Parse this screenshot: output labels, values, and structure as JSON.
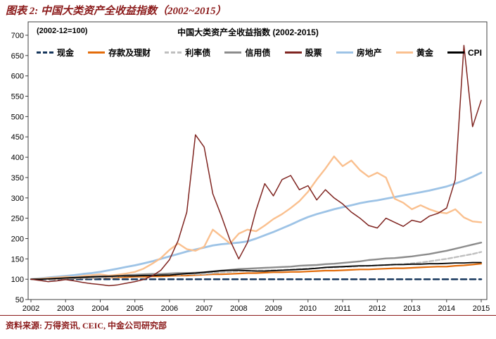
{
  "header": {
    "title": "图表 2:  中国大类资产全收益指数（2002~2015）"
  },
  "footer": {
    "source": "资料来源: 万得资讯, CEIC, 中金公司研究部"
  },
  "chart_data": {
    "type": "line",
    "title": "中国大类资产全收益指数 (2002-2015)",
    "note": "(2002-12=100)",
    "grid": false,
    "legend_position": "top-inside",
    "xlim": [
      2002,
      2015
    ],
    "ylim": [
      50,
      700
    ],
    "x_step": 0.25,
    "x_tick_labels": [
      "2002",
      "2003",
      "2004",
      "2005",
      "2006",
      "2007",
      "2008",
      "2009",
      "2010",
      "2011",
      "2012",
      "2013",
      "2014",
      "2015"
    ],
    "y_ticks": [
      50,
      100,
      150,
      200,
      250,
      300,
      350,
      400,
      450,
      500,
      550,
      600,
      650,
      700
    ],
    "series": [
      {
        "key": "cash",
        "name": "现金",
        "color": "#16365C",
        "width": 2.5,
        "dash": [
          8,
          5
        ],
        "z": 0,
        "values": [
          100,
          100,
          100,
          100,
          100,
          100,
          100,
          100,
          100,
          100,
          100,
          100,
          100,
          100,
          100,
          100,
          100,
          100,
          100,
          100,
          100,
          100,
          100,
          100,
          100,
          100,
          100,
          100,
          100,
          100,
          100,
          100,
          100,
          100,
          100,
          100,
          100,
          100,
          100,
          100,
          100,
          100,
          100,
          100,
          100,
          100,
          100,
          100,
          100,
          100,
          100,
          100,
          100
        ]
      },
      {
        "key": "deposits",
        "name": "存款及理财",
        "color": "#E36C0A",
        "width": 2.2,
        "dash": null,
        "z": 0,
        "values": [
          100,
          100,
          101,
          101,
          102,
          102,
          103,
          103,
          104,
          104,
          105,
          105,
          106,
          106,
          107,
          107,
          108,
          109,
          109,
          110,
          111,
          112,
          112,
          113,
          114,
          115,
          115,
          116,
          117,
          117,
          118,
          118,
          119,
          120,
          121,
          121,
          122,
          123,
          124,
          124,
          125,
          126,
          127,
          127,
          128,
          129,
          130,
          131,
          131,
          133,
          134,
          136,
          138
        ]
      },
      {
        "key": "rate_bonds",
        "name": "利率债",
        "color": "#BFBFBF",
        "width": 2.4,
        "dash": [
          6,
          3
        ],
        "z": 0,
        "values": [
          100,
          100,
          101,
          101,
          102,
          102,
          103,
          103,
          104,
          105,
          107,
          108,
          109,
          109,
          110,
          110,
          111,
          111,
          112,
          112,
          113,
          115,
          117,
          118,
          120,
          120,
          121,
          121,
          122,
          123,
          124,
          125,
          126,
          127,
          128,
          129,
          130,
          131,
          132,
          133,
          134,
          135,
          136,
          137,
          139,
          141,
          144,
          147,
          150,
          154,
          158,
          162,
          167
        ]
      },
      {
        "key": "credit_bonds",
        "name": "信用债",
        "color": "#8C8C8C",
        "width": 2.4,
        "dash": null,
        "z": 0,
        "values": [
          100,
          101,
          102,
          102,
          103,
          103,
          104,
          105,
          105,
          107,
          108,
          110,
          111,
          112,
          113,
          113,
          114,
          115,
          115,
          116,
          117,
          119,
          121,
          123,
          125,
          126,
          127,
          128,
          129,
          130,
          131,
          133,
          134,
          135,
          137,
          138,
          140,
          142,
          144,
          147,
          149,
          151,
          152,
          154,
          156,
          159,
          162,
          166,
          170,
          175,
          180,
          185,
          190
        ]
      },
      {
        "key": "stocks",
        "name": "股票",
        "color": "#7F2420",
        "width": 1.5,
        "dash": null,
        "z": 2,
        "values": [
          100,
          97,
          94,
          96,
          99,
          96,
          92,
          89,
          87,
          84,
          86,
          90,
          94,
          99,
          108,
          122,
          148,
          195,
          265,
          455,
          425,
          310,
          255,
          195,
          150,
          190,
          270,
          335,
          305,
          345,
          355,
          320,
          330,
          295,
          320,
          300,
          285,
          265,
          250,
          232,
          226,
          250,
          240,
          230,
          245,
          240,
          255,
          262,
          275,
          345,
          675,
          475,
          540
        ]
      },
      {
        "key": "real_estate",
        "name": "房地产",
        "color": "#9DC3E6",
        "width": 2.8,
        "dash": null,
        "z": 0,
        "values": [
          100,
          102,
          104,
          106,
          108,
          110,
          113,
          115,
          118,
          122,
          126,
          130,
          134,
          139,
          144,
          150,
          156,
          162,
          168,
          173,
          178,
          183,
          186,
          188,
          190,
          193,
          200,
          208,
          216,
          225,
          234,
          244,
          253,
          260,
          266,
          272,
          277,
          282,
          287,
          291,
          294,
          298,
          302,
          306,
          310,
          314,
          318,
          323,
          328,
          335,
          343,
          352,
          362
        ]
      },
      {
        "key": "gold",
        "name": "黄金",
        "color": "#FAC08F",
        "width": 2.4,
        "dash": null,
        "z": 1,
        "values": [
          100,
          101,
          103,
          104,
          106,
          105,
          108,
          110,
          112,
          109,
          111,
          114,
          118,
          126,
          138,
          152,
          172,
          188,
          174,
          170,
          180,
          222,
          205,
          188,
          212,
          222,
          218,
          232,
          248,
          260,
          275,
          292,
          315,
          345,
          372,
          402,
          378,
          392,
          368,
          352,
          362,
          350,
          298,
          288,
          272,
          282,
          272,
          265,
          262,
          272,
          252,
          242,
          240
        ]
      },
      {
        "key": "cpi",
        "name": "CPI",
        "color": "#000000",
        "width": 1.8,
        "dash": null,
        "z": 1,
        "values": [
          100,
          100,
          101,
          102,
          103,
          104,
          105,
          106,
          107,
          107,
          108,
          108,
          108,
          109,
          109,
          110,
          110,
          112,
          114,
          115,
          117,
          119,
          121,
          122,
          122,
          121,
          120,
          120,
          121,
          122,
          123,
          124,
          125,
          127,
          129,
          130,
          131,
          132,
          133,
          133,
          134,
          135,
          136,
          136,
          137,
          137,
          138,
          138,
          139,
          140,
          140,
          141,
          141
        ]
      }
    ]
  }
}
